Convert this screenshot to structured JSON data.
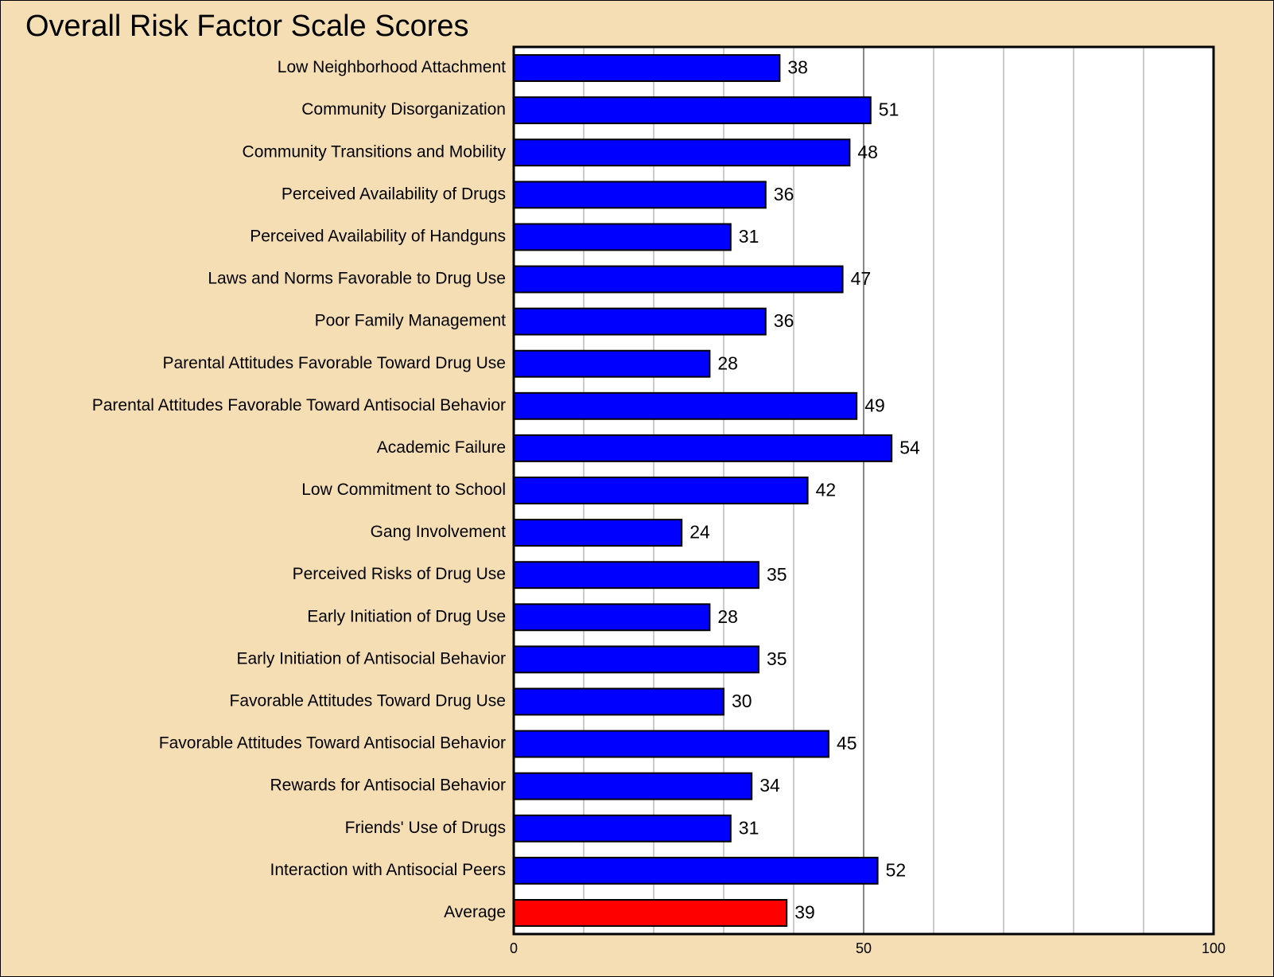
{
  "chart_data": {
    "type": "barh",
    "title": "Overall Risk Factor Scale Scores",
    "categories": [
      "Low Neighborhood Attachment",
      "Community Disorganization",
      "Community Transitions and Mobility",
      "Perceived Availability of Drugs",
      "Perceived Availability of Handguns",
      "Laws and Norms Favorable to Drug Use",
      "Poor Family Management",
      "Parental Attitudes Favorable Toward Drug Use",
      "Parental Attitudes Favorable Toward Antisocial Behavior",
      "Academic Failure",
      "Low Commitment to School",
      "Gang Involvement",
      "Perceived Risks of Drug Use",
      "Early Initiation of Drug Use",
      "Early Initiation of Antisocial Behavior",
      "Favorable Attitudes Toward Drug Use",
      "Favorable Attitudes Toward Antisocial Behavior",
      "Rewards for Antisocial Behavior",
      "Friends' Use of Drugs",
      "Interaction with Antisocial Peers",
      "Average"
    ],
    "values": [
      38,
      51,
      48,
      36,
      31,
      47,
      36,
      28,
      49,
      54,
      42,
      24,
      35,
      28,
      35,
      30,
      45,
      34,
      31,
      52,
      39
    ],
    "colors": [
      "#0000ff",
      "#0000ff",
      "#0000ff",
      "#0000ff",
      "#0000ff",
      "#0000ff",
      "#0000ff",
      "#0000ff",
      "#0000ff",
      "#0000ff",
      "#0000ff",
      "#0000ff",
      "#0000ff",
      "#0000ff",
      "#0000ff",
      "#0000ff",
      "#0000ff",
      "#0000ff",
      "#0000ff",
      "#0000ff",
      "#ff0000"
    ],
    "xlim": [
      0,
      100
    ],
    "xticks": [
      0,
      50,
      100
    ],
    "xminorticks": [
      10,
      20,
      30,
      40,
      60,
      70,
      80,
      90
    ],
    "grid": true
  }
}
